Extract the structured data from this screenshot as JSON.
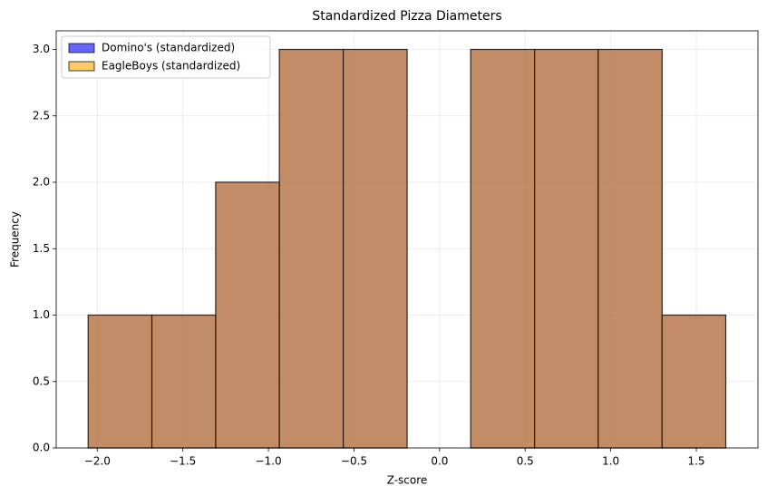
{
  "chart_data": {
    "type": "histogram",
    "title": "Standardized Pizza Diameters",
    "x_label": "Z-score",
    "y_label": "Frequency",
    "bins": [
      -2.053,
      -1.681,
      -1.308,
      -0.936,
      -0.563,
      -0.19,
      0.182,
      0.555,
      0.927,
      1.3,
      1.672
    ],
    "series": [
      {
        "name": "Domino's (standardized)",
        "color": "#0000ff",
        "values": [
          1,
          1,
          2,
          3,
          3,
          0,
          3,
          3,
          3,
          1
        ]
      },
      {
        "name": "EagleBoys (standardized)",
        "color": "#ffa500",
        "values": [
          1,
          1,
          2,
          3,
          3,
          0,
          3,
          3,
          3,
          1
        ]
      }
    ],
    "xlim": [
      -2.24,
      1.86
    ],
    "xticks": [
      {
        "value": -2,
        "label": "−2.0"
      },
      {
        "value": -1.5,
        "label": "−1.5"
      },
      {
        "value": -1,
        "label": "−1.0"
      },
      {
        "value": -0.5,
        "label": "−0.5"
      },
      {
        "value": 0,
        "label": "0.0"
      },
      {
        "value": 0.5,
        "label": "0.5"
      },
      {
        "value": 1,
        "label": "1.0"
      },
      {
        "value": 1.5,
        "label": "1.5"
      }
    ],
    "ylim": [
      0,
      3.14
    ],
    "yticks": [
      {
        "value": 0,
        "label": "0.0"
      },
      {
        "value": 0.5,
        "label": "0.5"
      },
      {
        "value": 1,
        "label": "1.0"
      },
      {
        "value": 1.5,
        "label": "1.5"
      },
      {
        "value": 2,
        "label": "2.0"
      },
      {
        "value": 2.5,
        "label": "2.5"
      },
      {
        "value": 3,
        "label": "3.0"
      }
    ],
    "grid": true,
    "legend": "upper left"
  }
}
